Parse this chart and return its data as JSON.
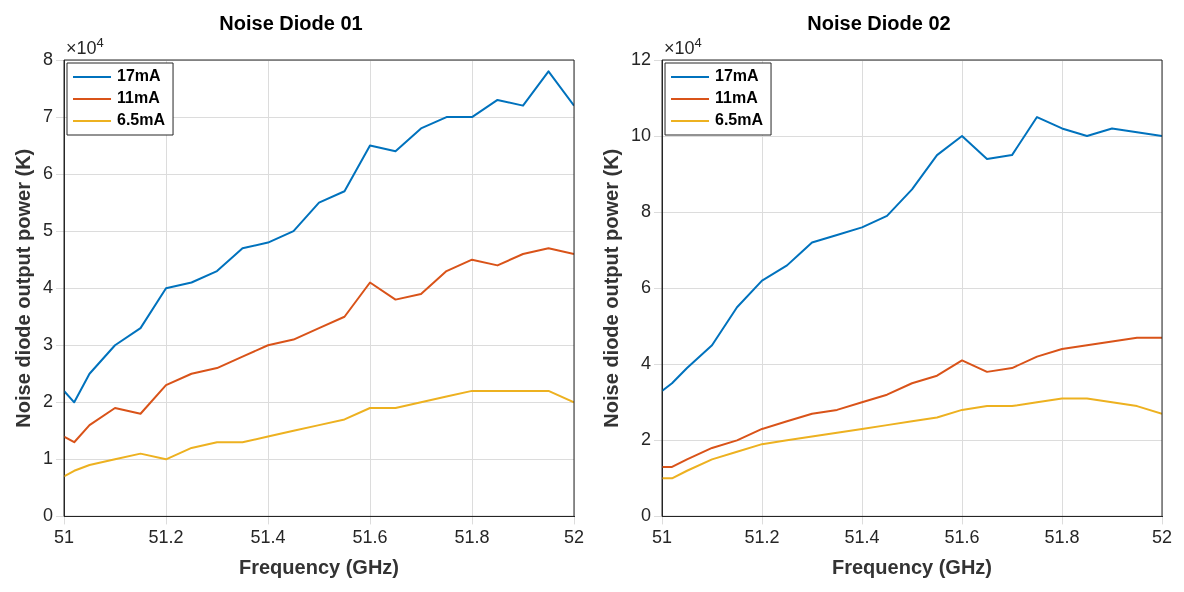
{
  "chart_data": [
    {
      "type": "line",
      "title": "Noise Diode 01",
      "xlabel": "Frequency (GHz)",
      "ylabel": "Noise diode output power (K)",
      "annotations": [
        "×10$^{4}$"
      ],
      "x": [
        51,
        51.02,
        51.05,
        51.1,
        51.15,
        51.2,
        51.25,
        51.3,
        51.35,
        51.4,
        51.45,
        51.5,
        51.55,
        51.6,
        51.65,
        51.7,
        51.75,
        51.8,
        51.85,
        51.9,
        51.95,
        52
      ],
      "series": [
        {
          "name": "17mA",
          "color": "#0072bd",
          "values": [
            2.2,
            2.0,
            2.5,
            3.0,
            3.3,
            4.0,
            4.1,
            4.3,
            4.7,
            4.8,
            5.0,
            5.5,
            5.7,
            6.5,
            6.4,
            6.8,
            7.0,
            7.0,
            7.3,
            7.2,
            7.8,
            7.2
          ]
        },
        {
          "name": "11mA",
          "color": "#d95319",
          "values": [
            1.4,
            1.3,
            1.6,
            1.9,
            1.8,
            2.3,
            2.5,
            2.6,
            2.8,
            3.0,
            3.1,
            3.3,
            3.5,
            4.1,
            3.8,
            3.9,
            4.3,
            4.5,
            4.4,
            4.6,
            4.7,
            4.6
          ]
        },
        {
          "name": "6.5mA",
          "color": "#edb120",
          "values": [
            0.7,
            0.8,
            0.9,
            1.0,
            1.1,
            1.0,
            1.2,
            1.3,
            1.3,
            1.4,
            1.5,
            1.6,
            1.7,
            1.9,
            1.9,
            2.0,
            2.1,
            2.2,
            2.2,
            2.2,
            2.2,
            2.0
          ]
        }
      ],
      "xlim": [
        51,
        52
      ],
      "xticks": [
        51,
        51.2,
        51.4,
        51.6,
        51.8,
        52
      ],
      "ylim": [
        0,
        8
      ],
      "yticks": [
        0,
        1,
        2,
        3,
        4,
        5,
        6,
        7,
        8
      ],
      "grid": true,
      "legend": "top left",
      "marker": "none",
      "line_style": "solid"
    },
    {
      "type": "line",
      "title": "Noise Diode 02",
      "xlabel": "Frequency (GHz)",
      "ylabel": "Noise diode output power (K)",
      "annotations": [
        "×10$^{4}$"
      ],
      "x": [
        51,
        51.02,
        51.05,
        51.1,
        51.15,
        51.2,
        51.25,
        51.3,
        51.35,
        51.4,
        51.45,
        51.5,
        51.55,
        51.6,
        51.65,
        51.7,
        51.75,
        51.8,
        51.85,
        51.9,
        51.95,
        52
      ],
      "series": [
        {
          "name": "17mA",
          "color": "#0072bd",
          "values": [
            3.3,
            3.5,
            3.9,
            4.5,
            5.5,
            6.2,
            6.6,
            7.2,
            7.4,
            7.6,
            7.9,
            8.6,
            9.5,
            10.0,
            9.4,
            9.5,
            10.5,
            10.2,
            10.0,
            10.2,
            10.1,
            10.0
          ]
        },
        {
          "name": "11mA",
          "color": "#d95319",
          "values": [
            1.3,
            1.3,
            1.5,
            1.8,
            2.0,
            2.3,
            2.5,
            2.7,
            2.8,
            3.0,
            3.2,
            3.5,
            3.7,
            4.1,
            3.8,
            3.9,
            4.2,
            4.4,
            4.5,
            4.6,
            4.7,
            4.7
          ]
        },
        {
          "name": "6.5mA",
          "color": "#edb120",
          "values": [
            1.0,
            1.0,
            1.2,
            1.5,
            1.7,
            1.9,
            2.0,
            2.1,
            2.2,
            2.3,
            2.4,
            2.5,
            2.6,
            2.8,
            2.9,
            2.9,
            3.0,
            3.1,
            3.1,
            3.0,
            2.9,
            2.7
          ]
        }
      ],
      "xlim": [
        51,
        52
      ],
      "xticks": [
        51,
        51.2,
        51.4,
        51.6,
        51.8,
        52
      ],
      "ylim": [
        0,
        12
      ],
      "yticks": [
        0,
        2,
        4,
        6,
        8,
        10,
        12
      ],
      "grid": true,
      "legend": "top left",
      "marker": "none",
      "line_style": "solid"
    }
  ]
}
